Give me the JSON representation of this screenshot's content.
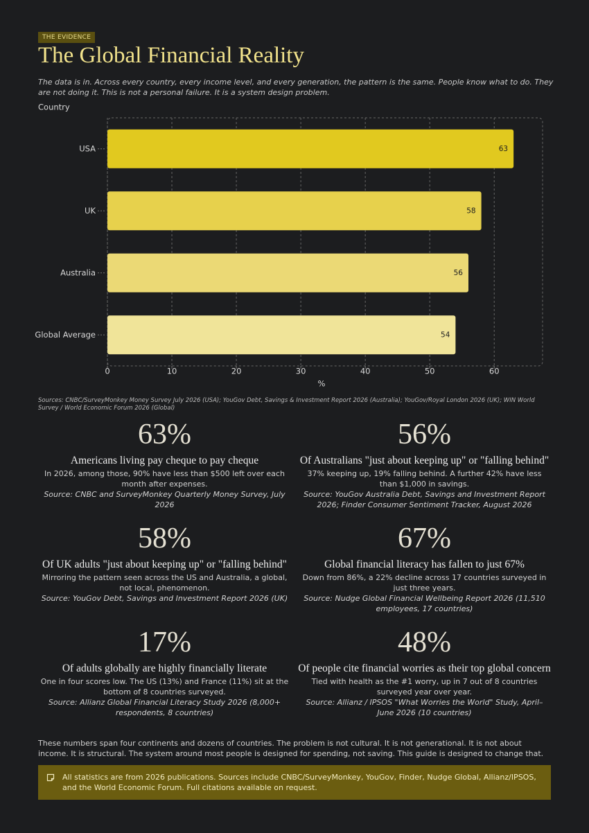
{
  "header": {
    "tag": "THE EVIDENCE",
    "title": "The Global Financial Reality",
    "intro": "The data is in. Across every country, every income level, and every generation, the pattern is the same. People know what to do. They are not doing it. This is not a personal failure. It is a system design problem."
  },
  "chart_data": {
    "type": "bar",
    "orientation": "horizontal",
    "y_label": "Country",
    "x_label": "%",
    "categories": [
      "USA",
      "UK",
      "Australia",
      "Global Average"
    ],
    "values": [
      63,
      58,
      56,
      54
    ],
    "colors": [
      "#e1c91f",
      "#e7d14c",
      "#ebd975",
      "#f0e499"
    ],
    "xlim": [
      0,
      67.5
    ],
    "xticks": [
      0,
      10,
      20,
      30,
      40,
      50,
      60
    ],
    "grid": true,
    "source": "Sources: CNBC/SurveyMonkey Money Survey July 2026 (USA); YouGov Debt, Savings & Investment Report 2026 (Australia); YouGov/Royal London 2026 (UK); WIN World Survey / World Economic Forum 2026 (Global)"
  },
  "stats": [
    {
      "figure": "63%",
      "heading": "Americans living pay cheque to pay cheque",
      "body": "In 2026, among those, 90% have less than $500 left over each month after expenses.",
      "source": "Source: CNBC and SurveyMonkey Quarterly Money Survey, July 2026"
    },
    {
      "figure": "56%",
      "heading": "Of Australians \"just about keeping up\" or \"falling behind\"",
      "body": "37% keeping up, 19% falling behind. A further 42% have less than $1,000 in savings.",
      "source": "Source: YouGov Australia Debt, Savings and Investment Report 2026; Finder Consumer Sentiment Tracker, August 2026"
    },
    {
      "figure": "58%",
      "heading": "Of UK adults \"just about keeping up\" or \"falling behind\"",
      "body": "Mirroring the pattern seen across the US and Australia, a global, not local, phenomenon.",
      "source": "Source: YouGov Debt, Savings and Investment Report 2026 (UK)"
    },
    {
      "figure": "67%",
      "heading": "Global financial literacy has fallen to just 67%",
      "body": "Down from 86%, a 22% decline across 17 countries surveyed in just three years.",
      "source": "Source: Nudge Global Financial Wellbeing Report 2026 (11,510 employees, 17 countries)"
    },
    {
      "figure": "17%",
      "heading": "Of adults globally are highly financially literate",
      "body": "One in four scores low. The US (13%) and France (11%) sit at the bottom of 8 countries surveyed.",
      "source": "Source: Allianz Global Financial Literacy Study 2026 (8,000+ respondents, 8 countries)"
    },
    {
      "figure": "48%",
      "heading": "Of people cite financial worries as their top global concern",
      "body": "Tied with health as the #1 worry, up in 7 out of 8 countries surveyed year over year.",
      "source": "Source: Allianz / IPSOS \"What Worries the World\" Study, April–June 2026 (10 countries)"
    }
  ],
  "closing": "These numbers span four continents and dozens of countries. The problem is not cultural. It is not generational. It is not about income. It is structural. The system around most people is designed for spending, not saving. This guide is designed to change that.",
  "note": "All statistics are from 2026 publications. Sources include CNBC/SurveyMonkey, YouGov, Finder, Nudge Global, Allianz/IPSOS, and the World Economic Forum. Full citations available on request."
}
